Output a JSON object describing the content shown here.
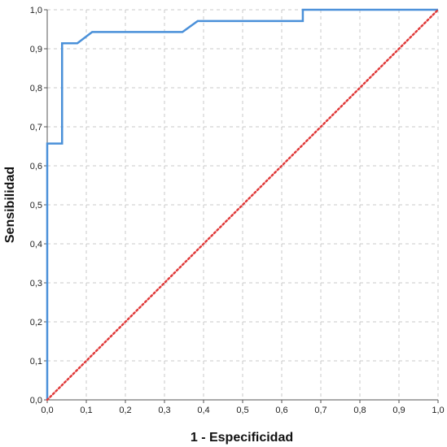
{
  "chart_data": {
    "type": "line",
    "title": "",
    "xlabel": "1 - Especificidad",
    "ylabel": "Sensibilidad",
    "xlim": [
      0.0,
      1.0
    ],
    "ylim": [
      0.0,
      1.0
    ],
    "xticks": [
      "0,0",
      "0,1",
      "0,2",
      "0,3",
      "0,4",
      "0,5",
      "0,6",
      "0,7",
      "0,8",
      "0,9",
      "1,0"
    ],
    "yticks": [
      "0,0",
      "0,1",
      "0,2",
      "0,3",
      "0,4",
      "0,5",
      "0,6",
      "0,7",
      "0,8",
      "0,9",
      "1,0"
    ],
    "grid": true,
    "series": [
      {
        "style": "step",
        "color": "#4a90d9",
        "x": [
          0.0,
          0.0,
          0.038,
          0.038,
          0.077,
          0.115,
          0.346,
          0.385,
          0.654,
          0.654,
          1.0
        ],
        "y": [
          0.0,
          0.657,
          0.657,
          0.914,
          0.914,
          0.943,
          0.943,
          0.971,
          0.971,
          1.0,
          1.0
        ]
      },
      {
        "style": "dotted",
        "color": "#e03a3a",
        "x": [
          0.0,
          1.0
        ],
        "y": [
          0.0,
          1.0
        ]
      }
    ]
  }
}
